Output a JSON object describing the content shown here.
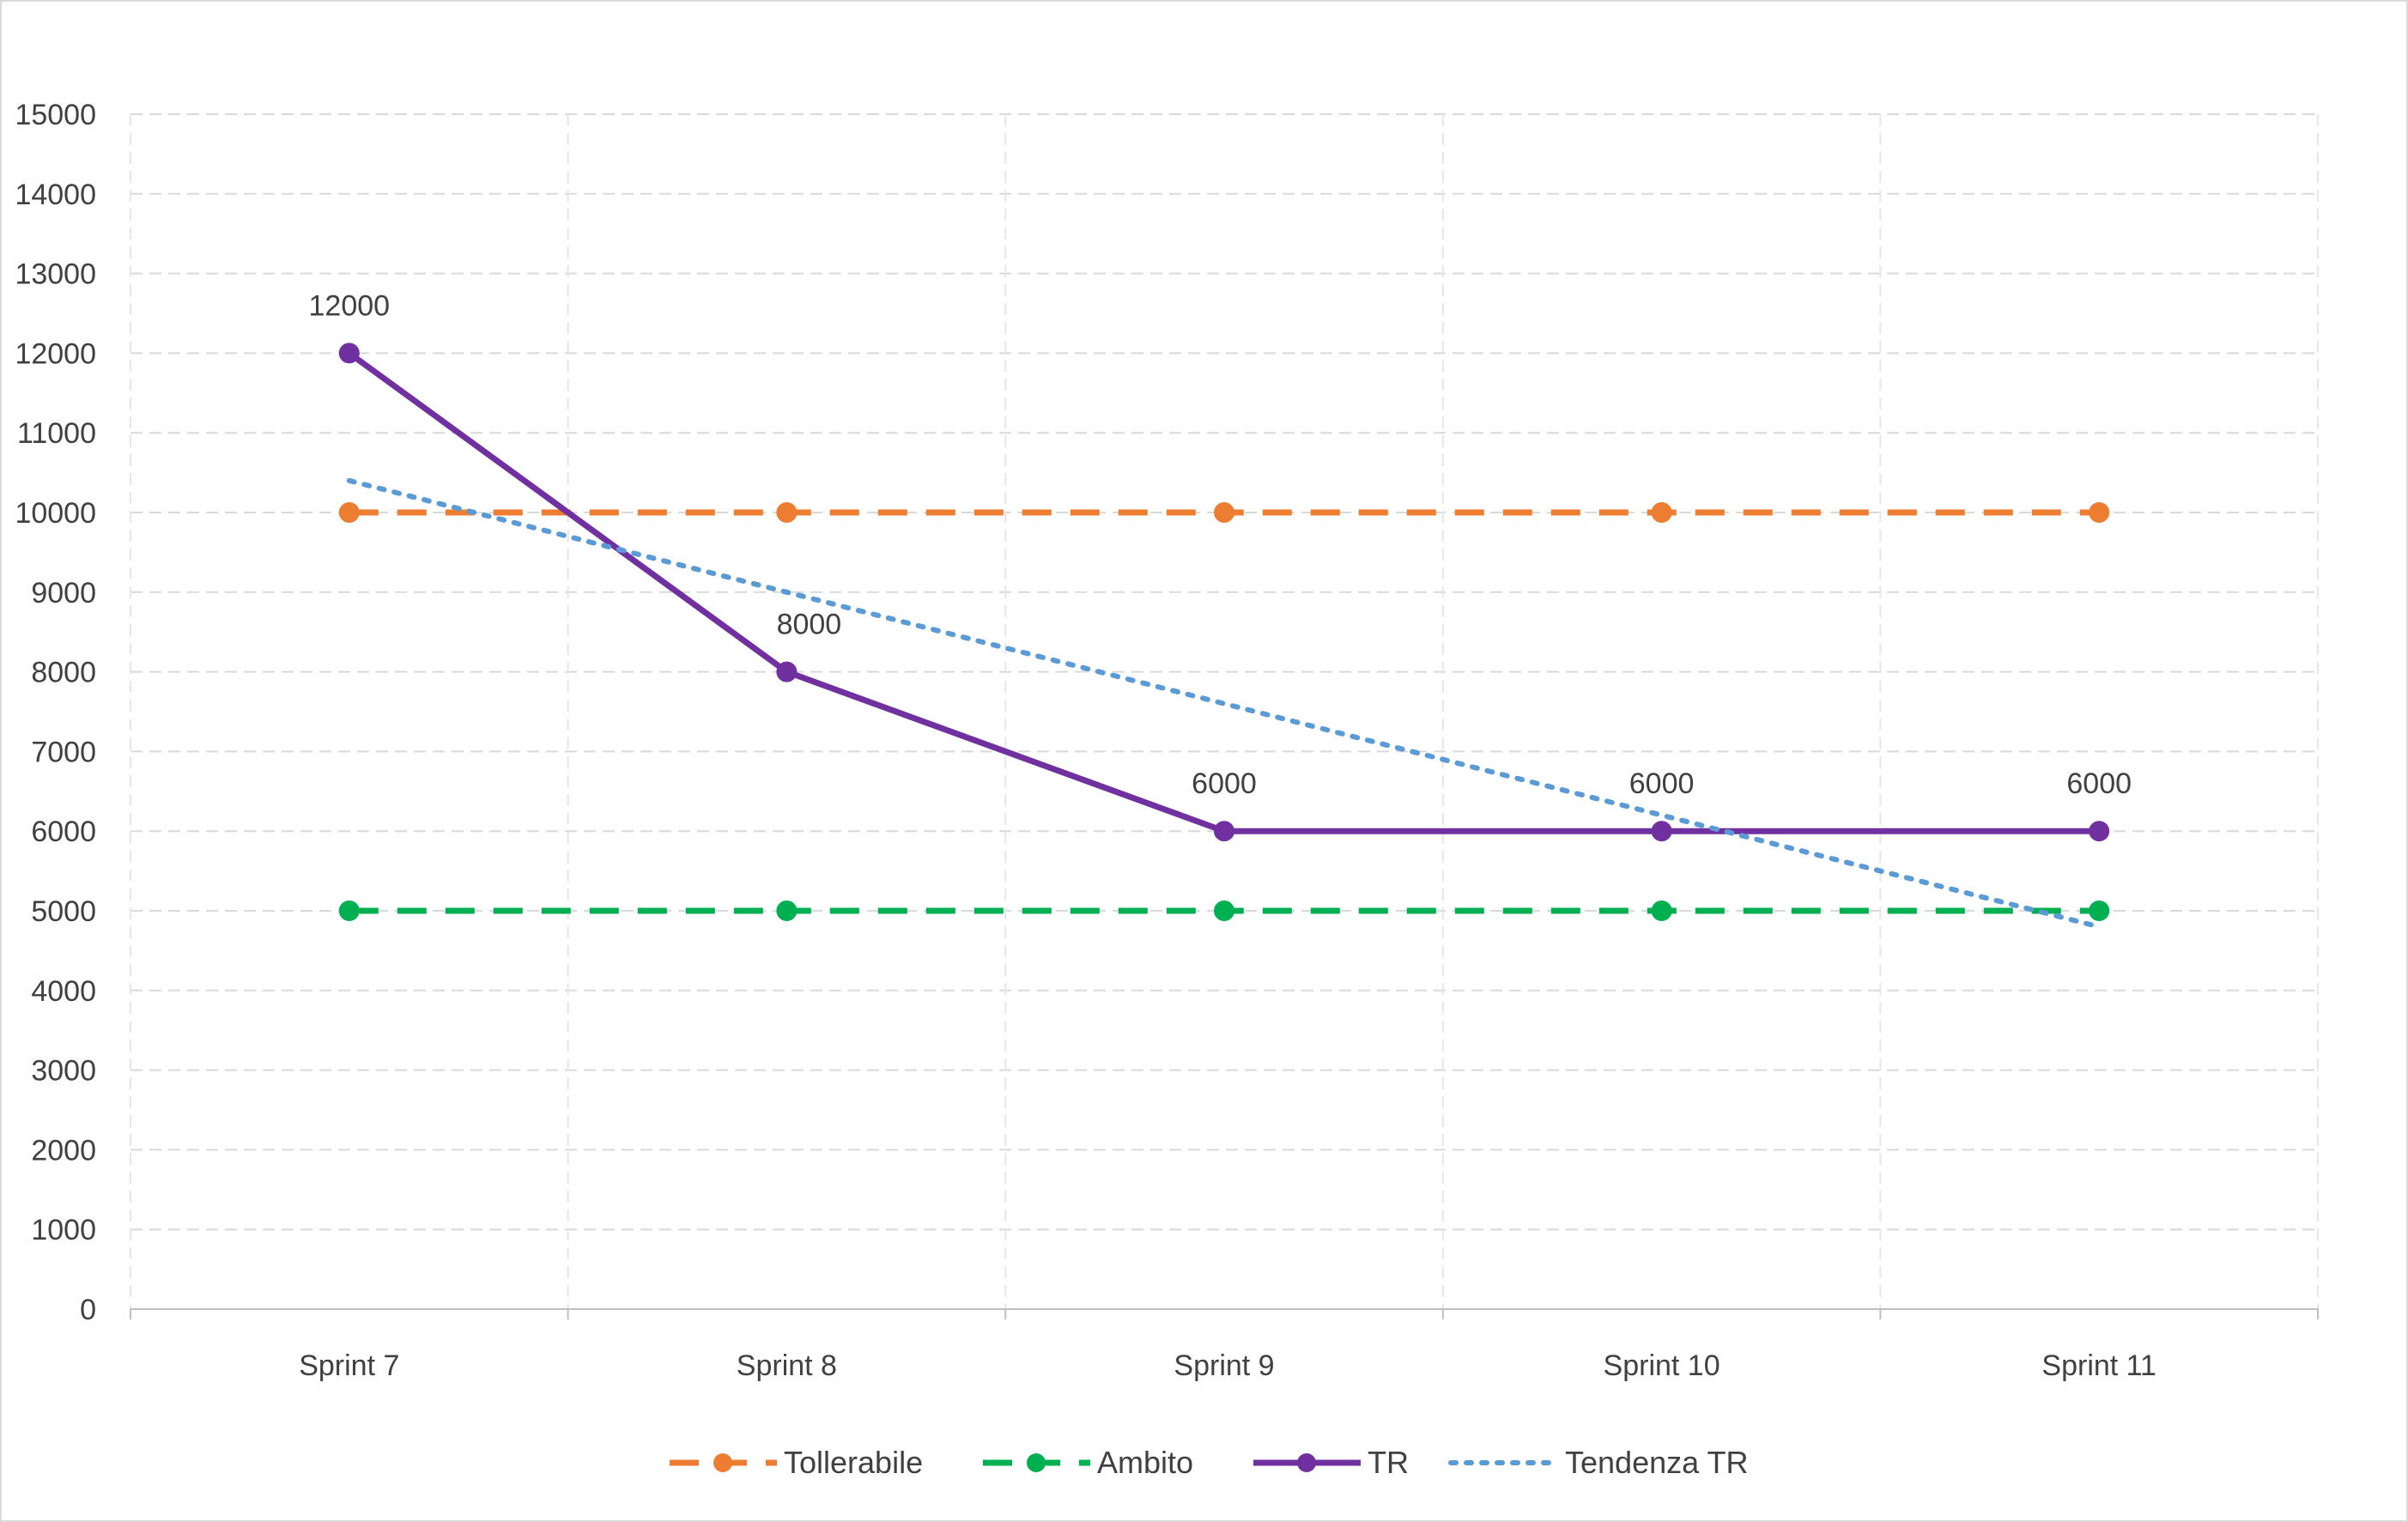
{
  "chart_data": {
    "type": "line",
    "title": "",
    "xlabel": "",
    "ylabel": "",
    "categories": [
      "Sprint 7",
      "Sprint 8",
      "Sprint 9",
      "Sprint 10",
      "Sprint 11"
    ],
    "ylim": [
      0,
      15000
    ],
    "yticks": [
      0,
      1000,
      2000,
      3000,
      4000,
      5000,
      6000,
      7000,
      8000,
      9000,
      10000,
      11000,
      12000,
      13000,
      14000,
      15000
    ],
    "grid": true,
    "legend_position": "bottom",
    "series": [
      {
        "name": "Tollerabile",
        "values": [
          10000,
          10000,
          10000,
          10000,
          10000
        ],
        "color": "#ED7D31",
        "style": "dashed",
        "markers": true,
        "labels": false
      },
      {
        "name": "Ambito",
        "values": [
          5000,
          5000,
          5000,
          5000,
          5000
        ],
        "color": "#00B050",
        "style": "dashed",
        "markers": true,
        "labels": false
      },
      {
        "name": "TR",
        "values": [
          12000,
          8000,
          6000,
          6000,
          6000
        ],
        "color": "#7030A0",
        "style": "solid",
        "markers": true,
        "labels": true
      },
      {
        "name": "Tendenza TR",
        "values": [
          10400,
          9000,
          7600,
          6200,
          4800
        ],
        "color": "#5B9BD5",
        "style": "dotted",
        "markers": false,
        "labels": false,
        "trendline": true
      }
    ]
  }
}
